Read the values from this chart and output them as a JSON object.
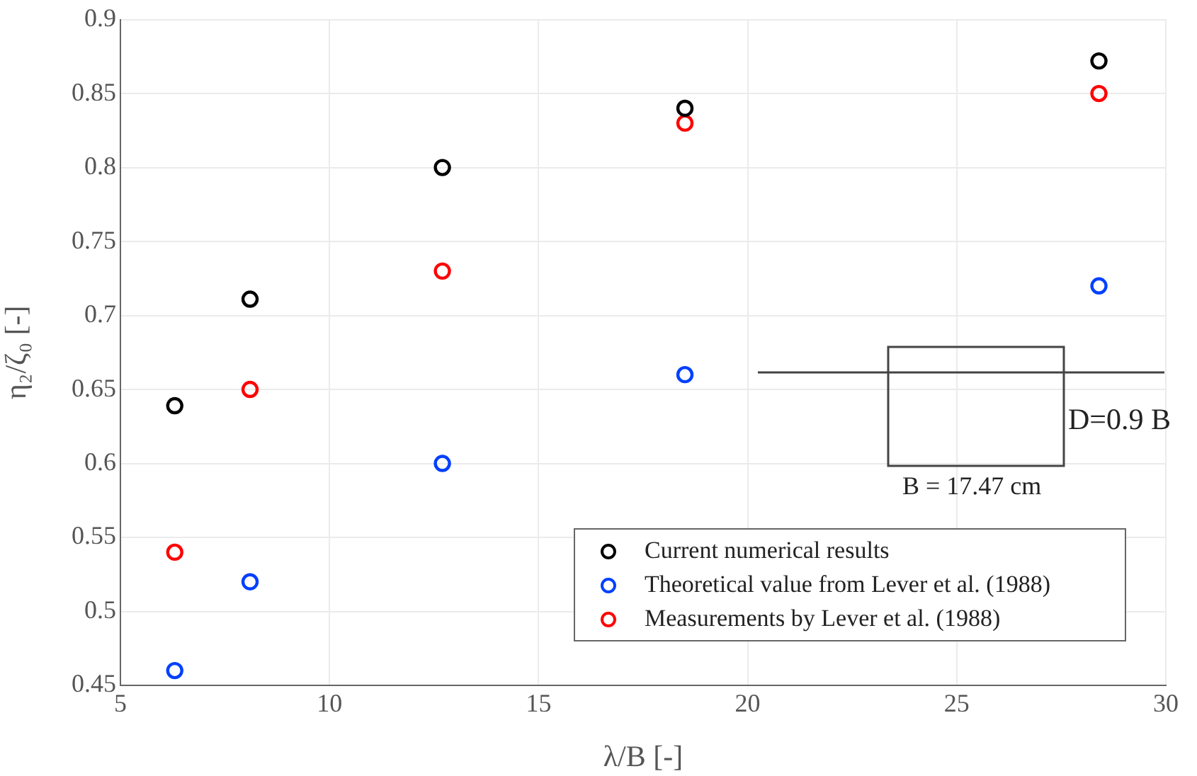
{
  "chart_data": {
    "type": "scatter",
    "xlabel": "λ/B [-]",
    "ylabel": "η₂/ζ₀ [-]",
    "xlim": [
      5,
      30
    ],
    "xticks": [
      5,
      10,
      15,
      20,
      25,
      30
    ],
    "ylim": [
      0.45,
      0.9
    ],
    "yticks": [
      0.45,
      0.5,
      0.55,
      0.6,
      0.65,
      0.7,
      0.75,
      0.8,
      0.85,
      0.9
    ],
    "grid": true,
    "legend": "bottom right",
    "marker": "circle",
    "annotations": [
      "D=0.9 B",
      "B = 17.47 cm"
    ],
    "series": [
      {
        "name": "Current numerical results",
        "color": "#000000",
        "x": [
          6.3,
          8.1,
          12.7,
          18.5,
          28.4
        ],
        "values": [
          0.639,
          0.711,
          0.8,
          0.84,
          0.872
        ]
      },
      {
        "name": "Theoretical value from Lever et al. (1988)",
        "color": "#0040ff",
        "x": [
          6.3,
          8.1,
          12.7,
          18.5,
          28.4
        ],
        "values": [
          0.46,
          0.52,
          0.6,
          0.66,
          0.72
        ]
      },
      {
        "name": "Measurements by Lever et al. (1988)",
        "color": "#ff0000",
        "x": [
          6.3,
          8.1,
          12.7,
          18.5,
          28.4
        ],
        "values": [
          0.54,
          0.65,
          0.73,
          0.83,
          0.85
        ]
      }
    ]
  }
}
